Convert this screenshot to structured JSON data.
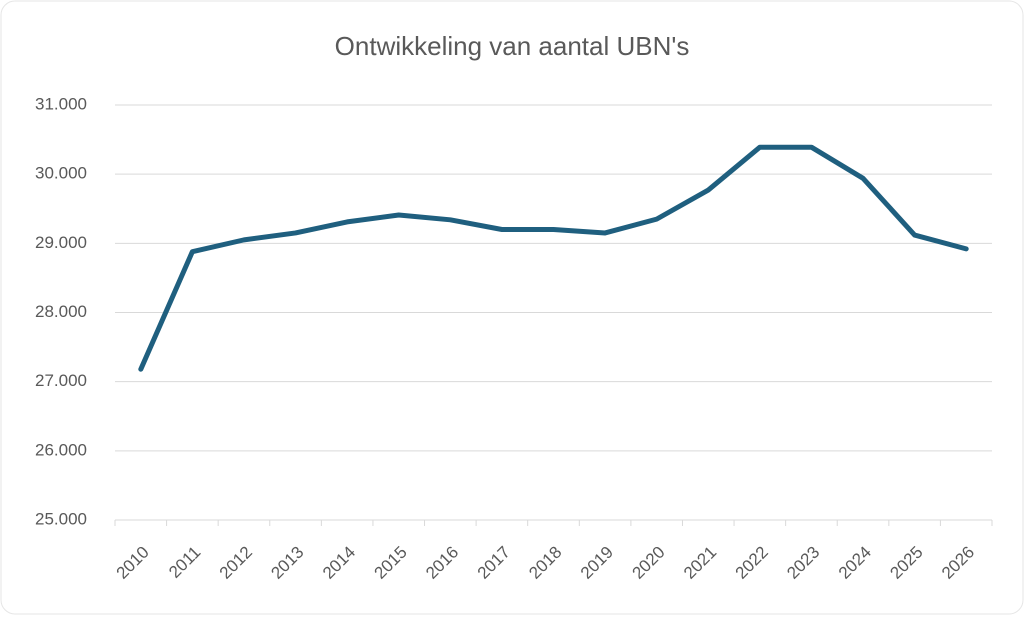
{
  "chart_data": {
    "type": "line",
    "title": "Ontwikkeling van aantal UBN's",
    "categories": [
      "2010",
      "2011",
      "2012",
      "2013",
      "2014",
      "2015",
      "2016",
      "2017",
      "2018",
      "2019",
      "2020",
      "2021",
      "2022",
      "2023",
      "2024",
      "2025",
      "2026"
    ],
    "series": [
      {
        "name": "Aantal UBN's",
        "color": "#1f5f7f",
        "values": [
          27180,
          28880,
          29050,
          29150,
          29310,
          29410,
          29340,
          29200,
          29200,
          29150,
          29350,
          29770,
          30390,
          30390,
          29940,
          29120,
          28920
        ]
      }
    ],
    "ylim": [
      25000,
      31000
    ],
    "yticks": [
      {
        "value": 25000,
        "label": "25.000"
      },
      {
        "value": 26000,
        "label": "26.000"
      },
      {
        "value": 27000,
        "label": "27.000"
      },
      {
        "value": 28000,
        "label": "28.000"
      },
      {
        "value": 29000,
        "label": "29.000"
      },
      {
        "value": 30000,
        "label": "30.000"
      },
      {
        "value": 31000,
        "label": "31.000"
      }
    ],
    "grid": true
  }
}
